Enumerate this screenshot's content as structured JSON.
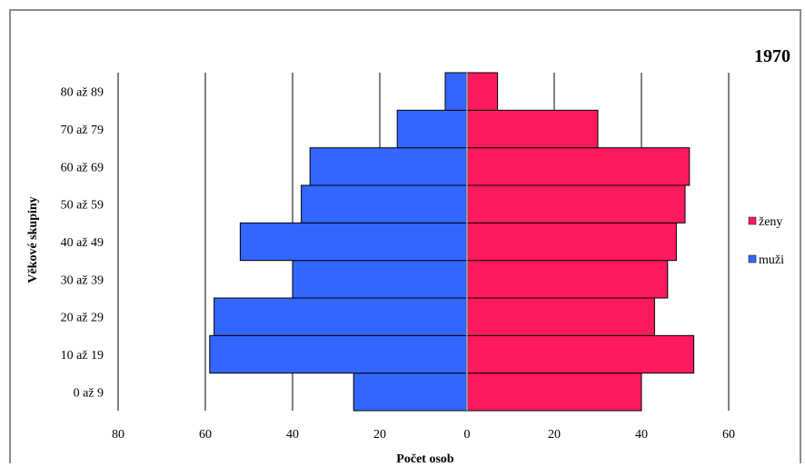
{
  "chart_data": {
    "type": "bar",
    "orientation": "horizontal",
    "title": "1970",
    "xlabel": "Počet osob",
    "ylabel": "Věkové skupiny",
    "categories": [
      "0 až 9",
      "10 až 19",
      "20 až 29",
      "30 až 39",
      "40 až 49",
      "50 až 59",
      "60 až 69",
      "70 až 79",
      "80 až 89"
    ],
    "series": [
      {
        "name": "ženy",
        "color": "#ff1a5e",
        "values": [
          40,
          52,
          43,
          46,
          48,
          50,
          51,
          30,
          7
        ]
      },
      {
        "name": "muži",
        "color": "#3366ff",
        "values": [
          26,
          59,
          58,
          40,
          52,
          38,
          36,
          16,
          5
        ]
      }
    ],
    "xlim": [
      -80,
      60
    ],
    "xticks": [
      -80,
      -60,
      -40,
      -20,
      0,
      20,
      40,
      60
    ],
    "xtick_labels": [
      "80",
      "60",
      "40",
      "20",
      "0",
      "20",
      "40",
      "60"
    ],
    "grid": "vertical",
    "legend_position": "right"
  }
}
